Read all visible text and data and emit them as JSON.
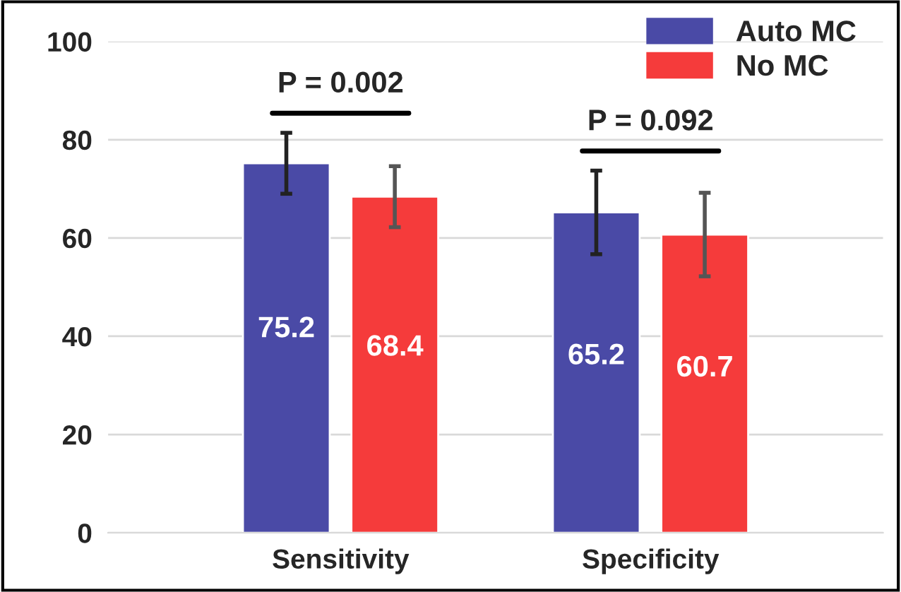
{
  "chart_data": {
    "type": "bar",
    "categories": [
      "Sensitivity",
      "Specificity"
    ],
    "series": [
      {
        "name": "Auto MC",
        "color": "#4a4aa6",
        "values": [
          75.2,
          65.2
        ],
        "errors": [
          6.2,
          8.5
        ]
      },
      {
        "name": "No MC",
        "color": "#f53b3b",
        "values": [
          68.4,
          60.7
        ],
        "errors": [
          6.2,
          8.5
        ]
      }
    ],
    "ylim": [
      0,
      100
    ],
    "yticks": [
      0,
      20,
      40,
      60,
      80,
      100
    ],
    "grid": "y",
    "legend": "top right",
    "data_labels": true,
    "annotations": [
      "P = 0.002",
      "P = 0.092"
    ]
  }
}
